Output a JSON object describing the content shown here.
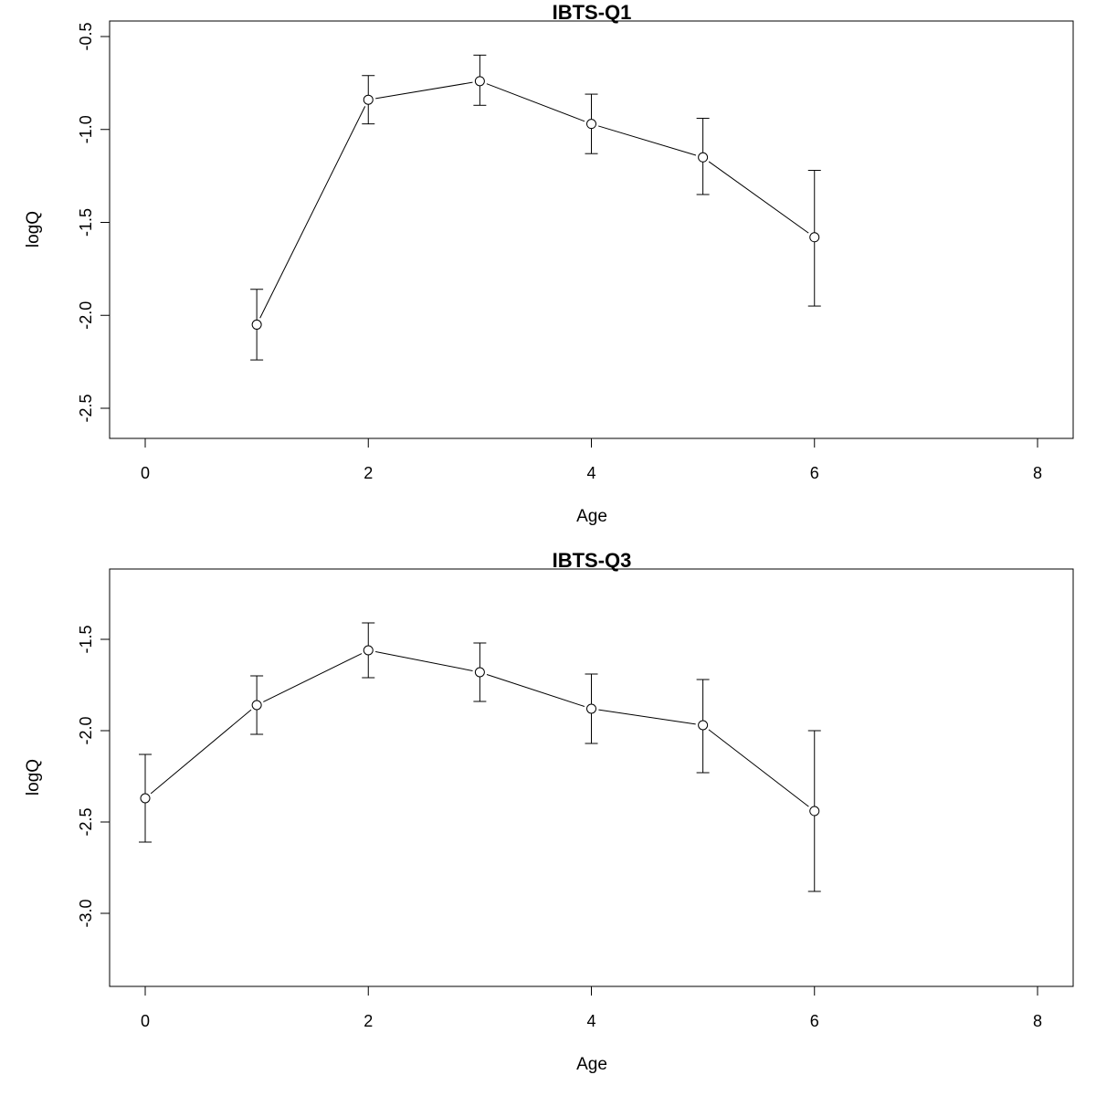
{
  "chart_data": [
    {
      "type": "line",
      "title": "IBTS-Q1",
      "xlabel": "Age",
      "ylabel": "logQ",
      "xlim": [
        0,
        8
      ],
      "ylim": [
        -2.5,
        -0.5
      ],
      "x_ticks": [
        "0",
        "2",
        "4",
        "6",
        "8"
      ],
      "y_ticks": [
        "-2.5",
        "-2.0",
        "-1.5",
        "-1.0",
        "-0.5"
      ],
      "grid": false,
      "error_bars": true,
      "points": [
        {
          "x": 1,
          "y": -2.05,
          "lo": -2.24,
          "hi": -1.86
        },
        {
          "x": 2,
          "y": -0.84,
          "lo": -0.97,
          "hi": -0.71
        },
        {
          "x": 3,
          "y": -0.74,
          "lo": -0.87,
          "hi": -0.6
        },
        {
          "x": 4,
          "y": -0.97,
          "lo": -1.13,
          "hi": -0.81
        },
        {
          "x": 5,
          "y": -1.15,
          "lo": -1.35,
          "hi": -0.94
        },
        {
          "x": 6,
          "y": -1.58,
          "lo": -1.95,
          "hi": -1.22
        }
      ]
    },
    {
      "type": "line",
      "title": "IBTS-Q3",
      "xlabel": "Age",
      "ylabel": "logQ",
      "xlim": [
        0,
        8
      ],
      "ylim": [
        -3.0,
        -1.5
      ],
      "x_ticks": [
        "0",
        "2",
        "4",
        "6",
        "8"
      ],
      "y_ticks": [
        "-3.0",
        "-2.5",
        "-2.0",
        "-1.5"
      ],
      "grid": false,
      "error_bars": true,
      "points": [
        {
          "x": 0,
          "y": -2.37,
          "lo": -2.61,
          "hi": -2.13
        },
        {
          "x": 1,
          "y": -1.86,
          "lo": -2.02,
          "hi": -1.7
        },
        {
          "x": 2,
          "y": -1.56,
          "lo": -1.71,
          "hi": -1.41
        },
        {
          "x": 3,
          "y": -1.68,
          "lo": -1.84,
          "hi": -1.52
        },
        {
          "x": 4,
          "y": -1.88,
          "lo": -2.07,
          "hi": -1.69
        },
        {
          "x": 5,
          "y": -1.97,
          "lo": -2.23,
          "hi": -1.72
        },
        {
          "x": 6,
          "y": -2.44,
          "lo": -2.88,
          "hi": -2.0
        }
      ]
    }
  ]
}
